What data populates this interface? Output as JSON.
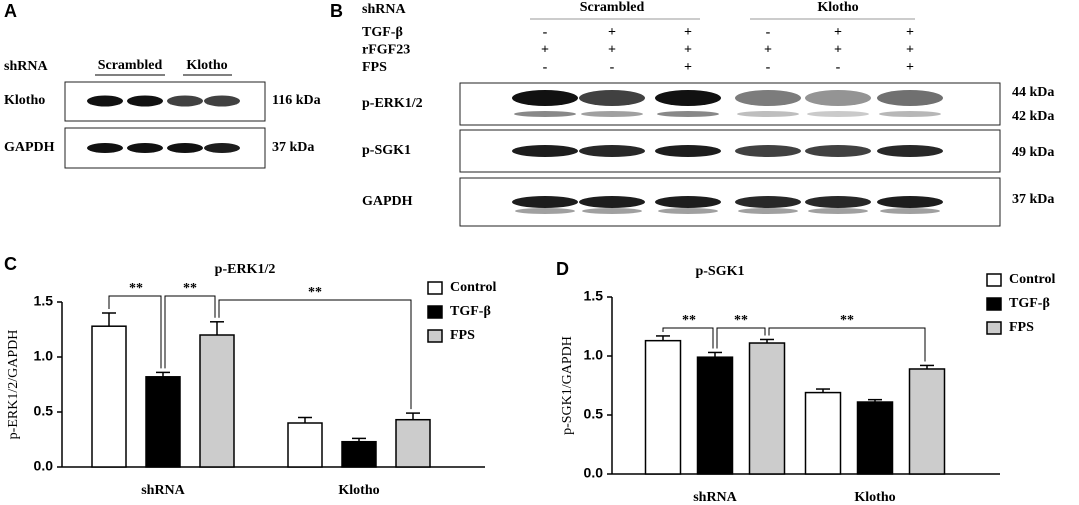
{
  "blots": {
    "panel_a": {
      "label": "A",
      "row_header": "shRNA",
      "groups": [
        "Scrambled",
        "Klotho"
      ],
      "rows": [
        {
          "name": "Klotho",
          "size": "116 kDa"
        },
        {
          "name": "GAPDH",
          "size": "37 kDa"
        }
      ]
    },
    "panel_b": {
      "label": "B",
      "row_header": "shRNA",
      "groups": [
        "Scrambled",
        "Klotho"
      ],
      "treatments": [
        {
          "name": "TGF-β",
          "signs": [
            "-",
            "+",
            "+",
            "-",
            "+",
            "+"
          ]
        },
        {
          "name": "rFGF23",
          "signs": [
            "+",
            "+",
            "+",
            "+",
            "+",
            "+"
          ]
        },
        {
          "name": "FPS",
          "signs": [
            "-",
            "-",
            "+",
            "-",
            "-",
            "+"
          ]
        }
      ],
      "rows": [
        {
          "name": "p-ERK1/2",
          "sizes": [
            "44 kDa",
            "42 kDa"
          ]
        },
        {
          "name": "p-SGK1",
          "sizes": [
            "49 kDa"
          ]
        },
        {
          "name": "GAPDH",
          "sizes": [
            "37 kDa"
          ]
        }
      ]
    }
  },
  "chart_data": [
    {
      "type": "bar",
      "panel_label": "C",
      "title": "p-ERK1/2",
      "y_label": "p-ERK1/2/GAPDH",
      "categories": [
        "shRNA",
        "Klotho"
      ],
      "series": [
        {
          "name": "Control",
          "color": "#ffffff",
          "values": [
            1.28,
            0.4
          ],
          "errors": [
            0.12,
            0.05
          ]
        },
        {
          "name": "TGF-β",
          "color": "#000000",
          "values": [
            0.82,
            0.23
          ],
          "errors": [
            0.04,
            0.03
          ]
        },
        {
          "name": "FPS",
          "color": "#cccccc",
          "values": [
            1.2,
            0.43
          ],
          "errors": [
            0.12,
            0.06
          ]
        }
      ],
      "ylim": [
        0,
        1.5
      ],
      "yticks": [
        {
          "value": 0,
          "label": "0.0"
        },
        0.5,
        {
          "value": 1,
          "label": "1.0"
        },
        1.5
      ],
      "legend": "right",
      "annotations": [
        "**",
        "**",
        "**"
      ]
    },
    {
      "type": "bar",
      "panel_label": "D",
      "title": "p-SGK1",
      "y_label": "p-SGK1/GAPDH",
      "categories": [
        "shRNA",
        "Klotho"
      ],
      "series": [
        {
          "name": "Control",
          "color": "#ffffff",
          "values": [
            1.13,
            0.69
          ],
          "errors": [
            0.04,
            0.03
          ]
        },
        {
          "name": "TGF-β",
          "color": "#000000",
          "values": [
            0.99,
            0.61
          ],
          "errors": [
            0.04,
            0.02
          ]
        },
        {
          "name": "FPS",
          "color": "#cccccc",
          "values": [
            1.11,
            0.89
          ],
          "errors": [
            0.03,
            0.03
          ]
        }
      ],
      "ylim": [
        0,
        1.5
      ],
      "yticks": [
        {
          "value": 0,
          "label": "0.0"
        },
        0.5,
        {
          "value": 1,
          "label": "1.0"
        },
        1.5
      ],
      "legend": "right",
      "annotations": [
        "**",
        "**",
        "**"
      ]
    }
  ]
}
